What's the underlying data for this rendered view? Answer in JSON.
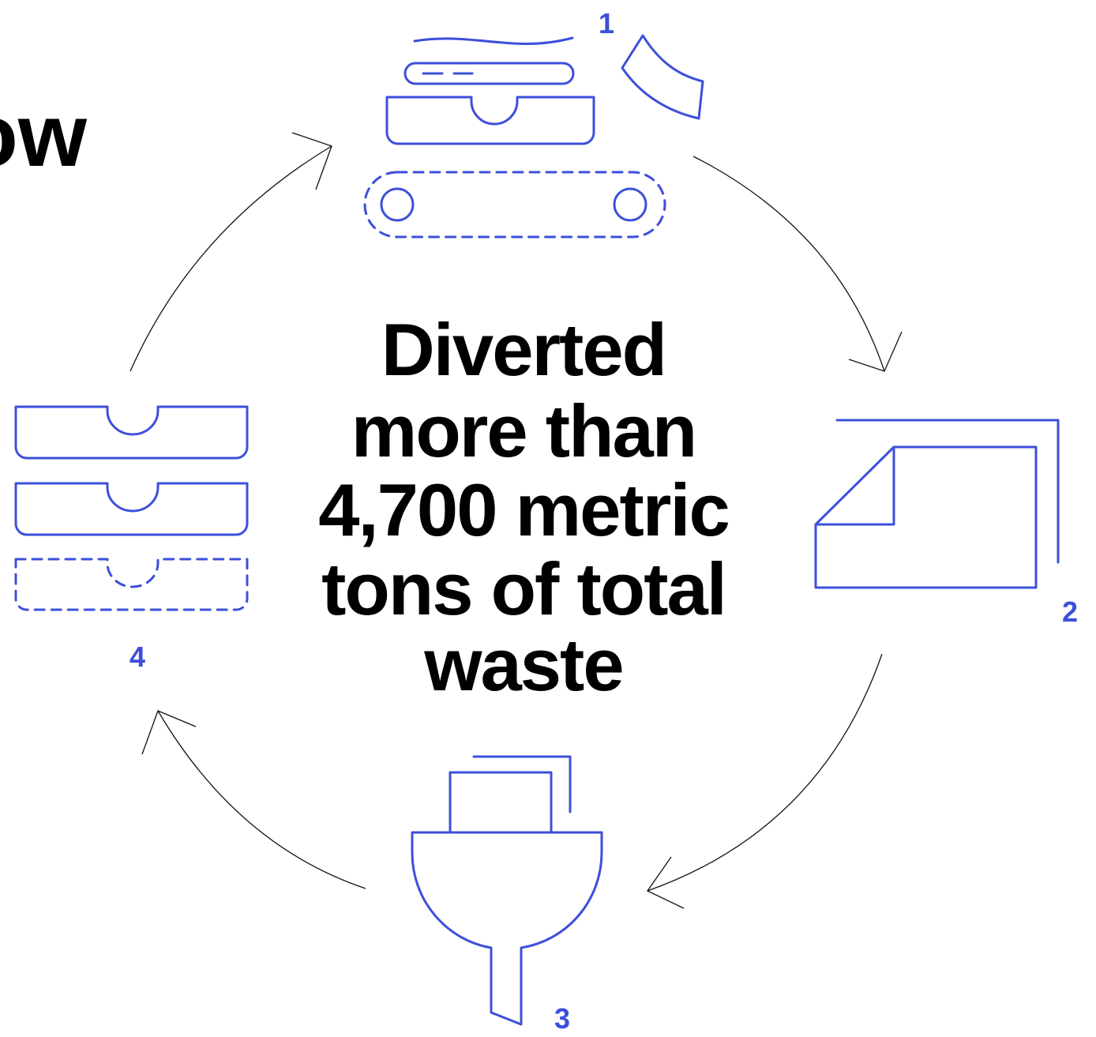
{
  "heading": "ow",
  "center_text": [
    "Diverted",
    "more than",
    "4,700 metric",
    "tons of total",
    "waste"
  ],
  "steps": [
    {
      "label": "1"
    },
    {
      "label": "2"
    },
    {
      "label": "3"
    },
    {
      "label": "4"
    }
  ]
}
